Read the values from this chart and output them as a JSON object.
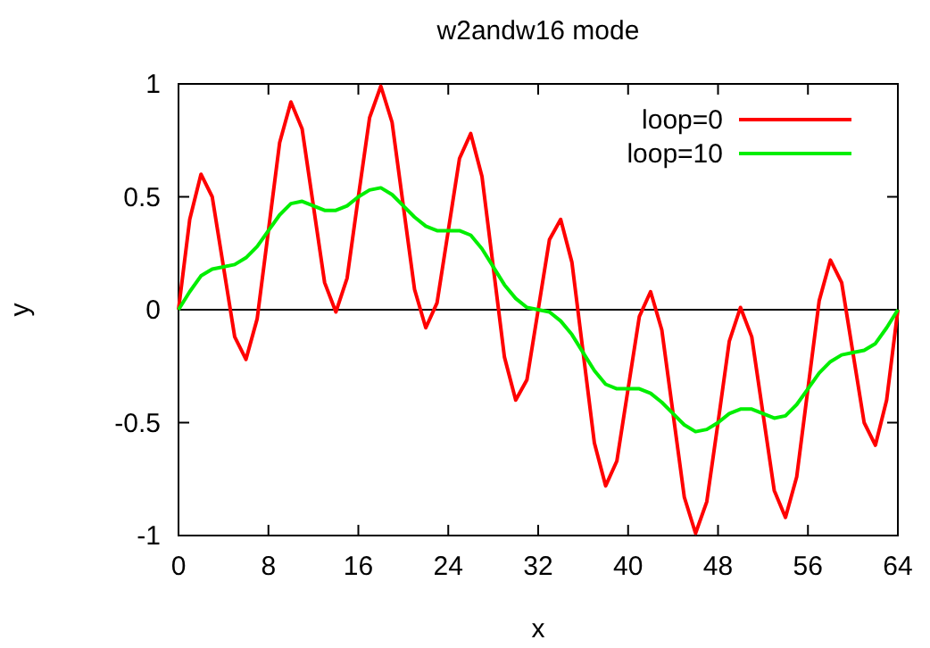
{
  "chart_data": {
    "type": "line",
    "title": "w2andw16 mode",
    "xlabel": "x",
    "ylabel": "y",
    "x": [
      0,
      1,
      2,
      3,
      4,
      5,
      6,
      7,
      8,
      9,
      10,
      11,
      12,
      13,
      14,
      15,
      16,
      17,
      18,
      19,
      20,
      21,
      22,
      23,
      24,
      25,
      26,
      27,
      28,
      29,
      30,
      31,
      32,
      33,
      34,
      35,
      36,
      37,
      38,
      39,
      40,
      41,
      42,
      43,
      44,
      45,
      46,
      47,
      48,
      49,
      50,
      51,
      52,
      53,
      54,
      55,
      56,
      57,
      58,
      59,
      60,
      61,
      62,
      63,
      64
    ],
    "series": [
      {
        "name": "loop=0",
        "color": "#ff0000",
        "values": [
          0,
          0.4,
          0.6,
          0.5,
          0.19,
          -0.12,
          -0.22,
          -0.04,
          0.35,
          0.74,
          0.92,
          0.8,
          0.46,
          0.12,
          -0.01,
          0.14,
          0.5,
          0.85,
          0.99,
          0.83,
          0.46,
          0.09,
          -0.08,
          0.03,
          0.35,
          0.67,
          0.78,
          0.59,
          0.19,
          -0.21,
          -0.4,
          -0.31,
          0,
          0.31,
          0.4,
          0.21,
          -0.19,
          -0.59,
          -0.78,
          -0.67,
          -0.35,
          -0.03,
          0.08,
          -0.09,
          -0.46,
          -0.83,
          -0.99,
          -0.85,
          -0.5,
          -0.14,
          0.01,
          -0.12,
          -0.46,
          -0.8,
          -0.92,
          -0.74,
          -0.35,
          0.04,
          0.22,
          0.12,
          -0.19,
          -0.5,
          -0.6,
          -0.4,
          0
        ]
      },
      {
        "name": "loop=10",
        "color": "#00ee00",
        "values": [
          0,
          0.08,
          0.15,
          0.18,
          0.19,
          0.2,
          0.23,
          0.28,
          0.35,
          0.42,
          0.47,
          0.48,
          0.46,
          0.44,
          0.44,
          0.46,
          0.5,
          0.53,
          0.54,
          0.51,
          0.46,
          0.41,
          0.37,
          0.35,
          0.35,
          0.35,
          0.33,
          0.27,
          0.19,
          0.11,
          0.05,
          0.01,
          0,
          -0.01,
          -0.05,
          -0.11,
          -0.19,
          -0.27,
          -0.33,
          -0.35,
          -0.35,
          -0.35,
          -0.37,
          -0.41,
          -0.46,
          -0.51,
          -0.54,
          -0.53,
          -0.5,
          -0.46,
          -0.44,
          -0.44,
          -0.46,
          -0.48,
          -0.47,
          -0.42,
          -0.35,
          -0.28,
          -0.23,
          -0.2,
          -0.19,
          -0.18,
          -0.15,
          -0.08,
          0
        ]
      }
    ],
    "xlim": [
      0,
      64
    ],
    "xticks": [
      0,
      8,
      16,
      24,
      32,
      40,
      48,
      56,
      64
    ],
    "ylim": [
      -1,
      1
    ],
    "yticks": [
      {
        "value": -1,
        "label": "-1"
      },
      {
        "value": -0.5,
        "label": "-0.5"
      },
      0,
      0.5,
      1
    ],
    "ref_lines": [
      {
        "axis": "y",
        "value": 0,
        "color": "#000000"
      }
    ],
    "legend": "top right",
    "grid": false,
    "line_style": "solid"
  }
}
